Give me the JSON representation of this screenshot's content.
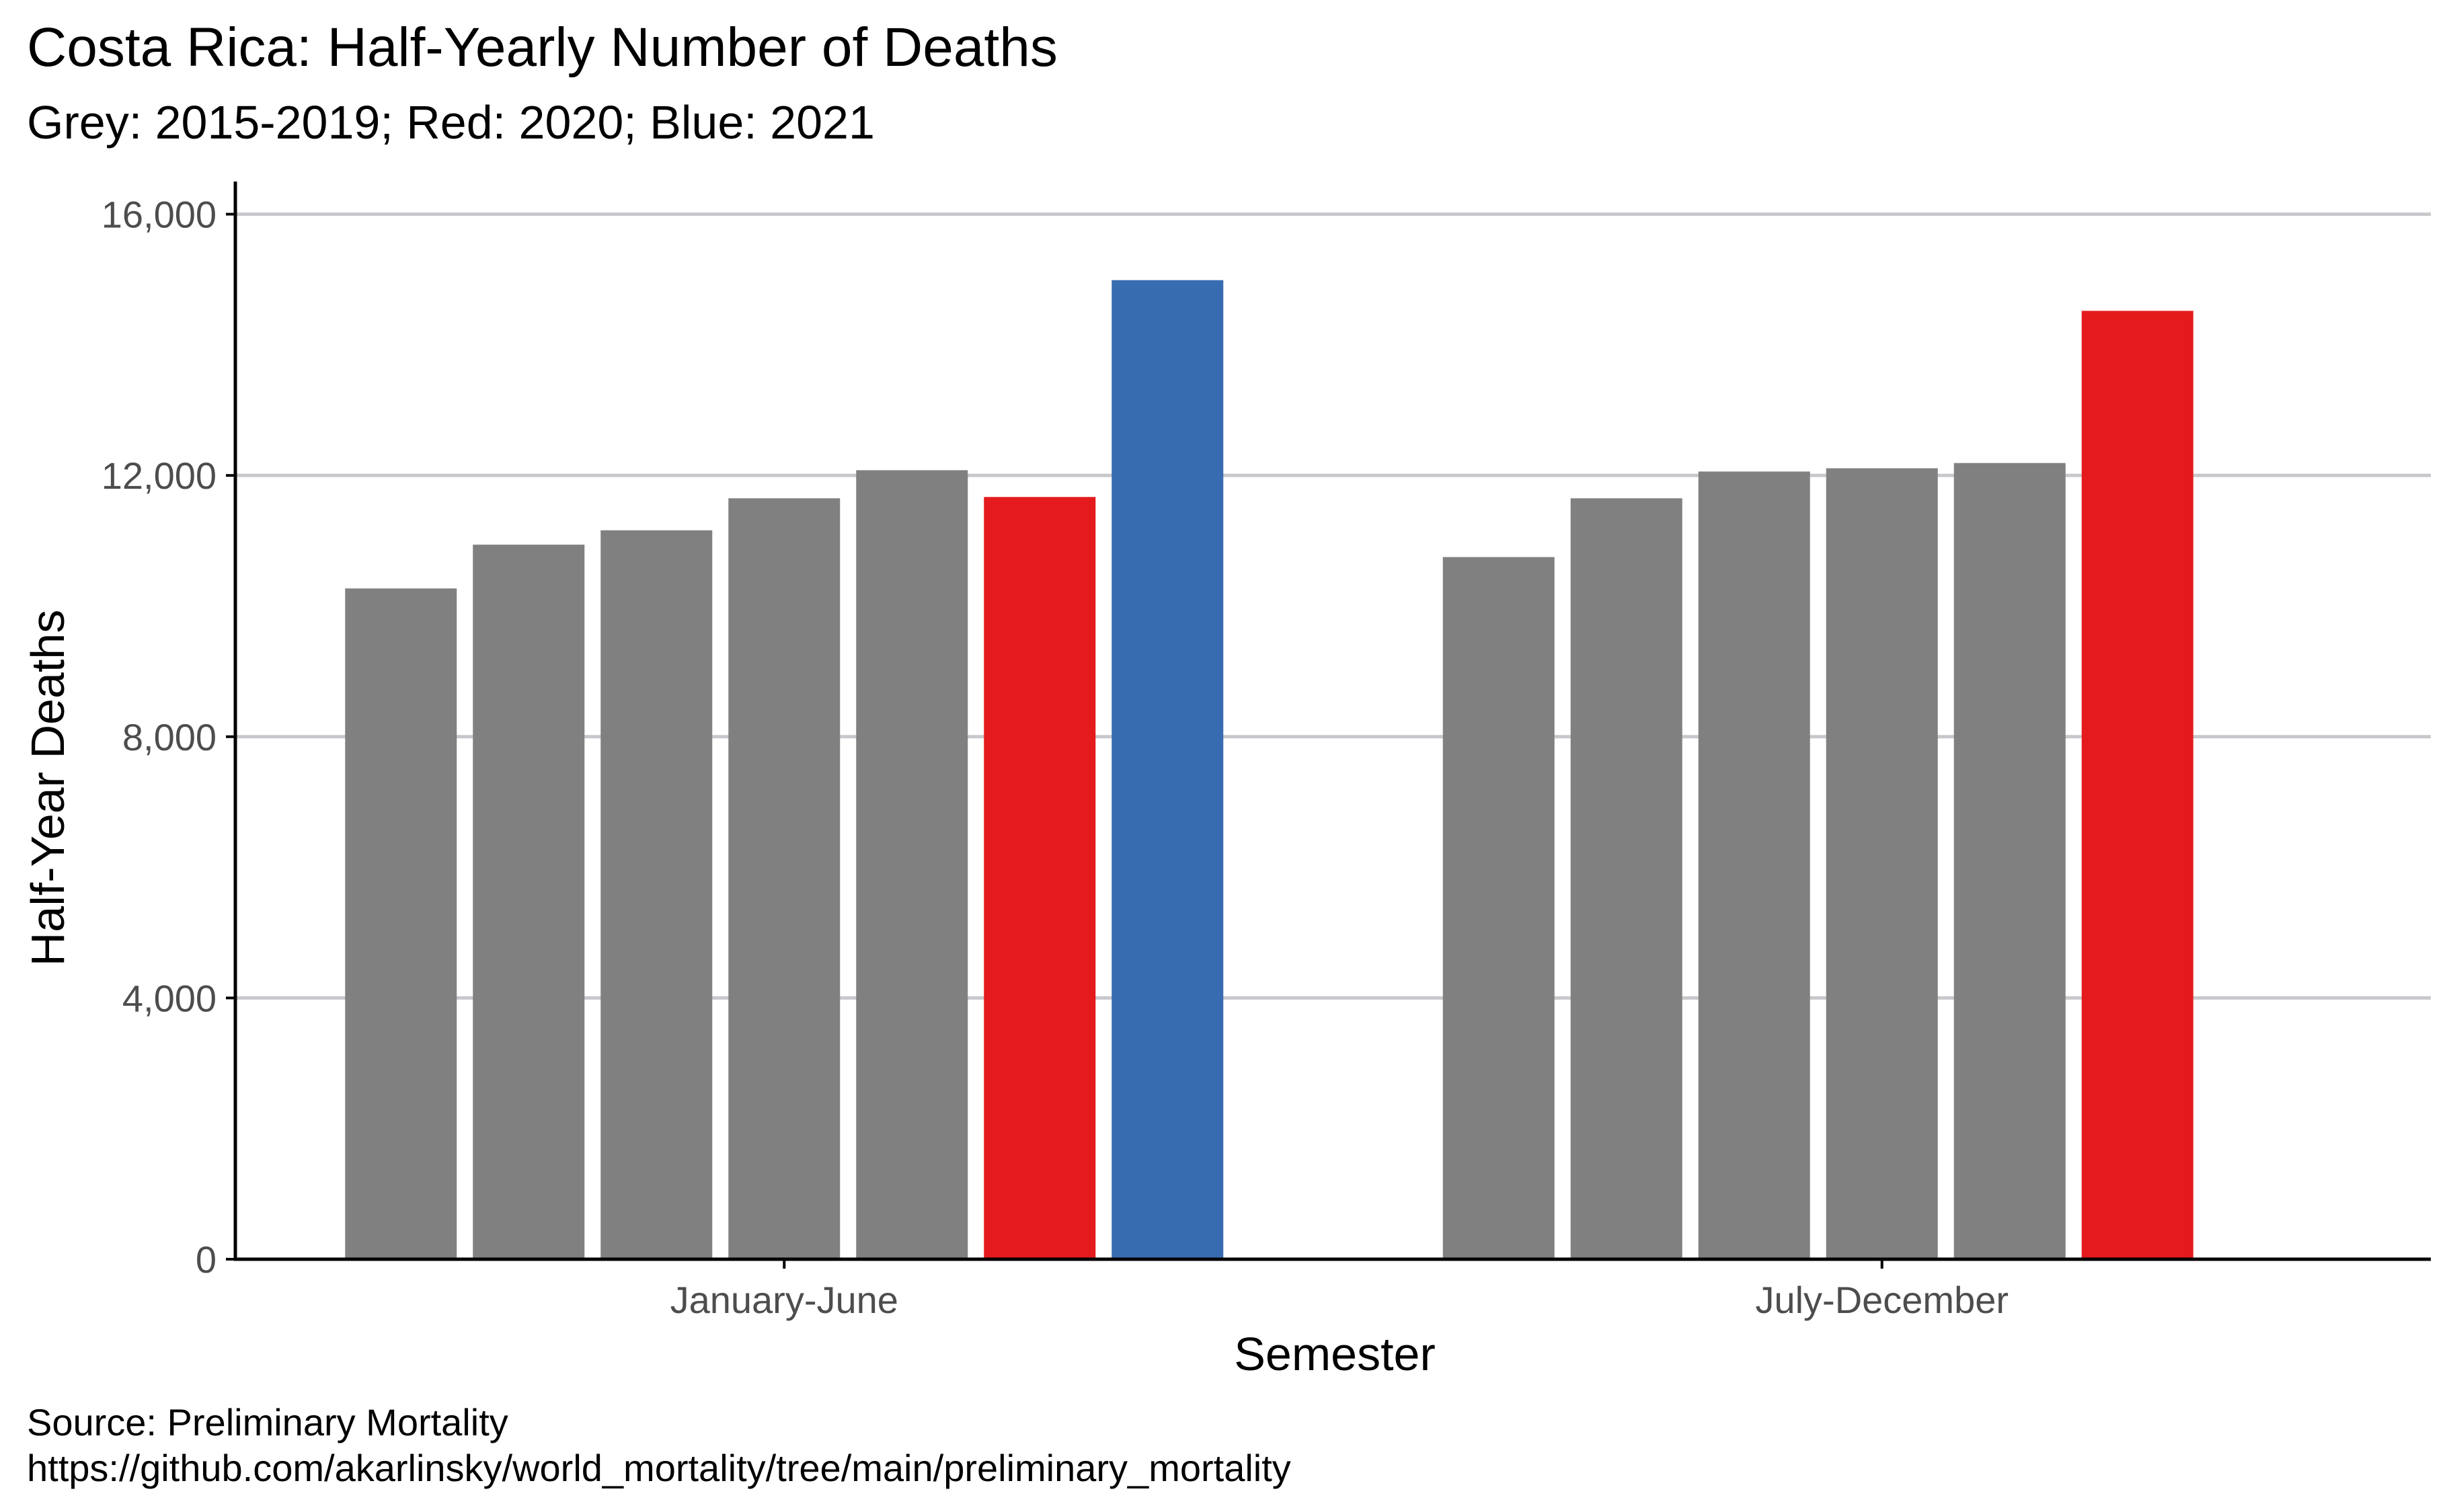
{
  "chart_data": {
    "type": "bar",
    "title": "Costa Rica: Half-Yearly Number of Deaths",
    "subtitle": "Grey: 2015-2019; Red: 2020; Blue: 2021",
    "xlabel": "Semester",
    "ylabel": "Half-Year Deaths",
    "ylim": [
      0,
      16500
    ],
    "yticks": [
      0,
      4000,
      8000,
      12000,
      16000
    ],
    "ytick_labels": [
      "0",
      "4,000",
      "8,000",
      "12,000",
      "16,000"
    ],
    "grid": "horizontal",
    "legend": "none",
    "categories": [
      "January-June",
      "July-December"
    ],
    "series": [
      {
        "color": "#808080",
        "values": [
          10270,
          10750
        ]
      },
      {
        "color": "#808080",
        "values": [
          10940,
          11650
        ]
      },
      {
        "color": "#808080",
        "values": [
          11160,
          12060
        ]
      },
      {
        "color": "#808080",
        "values": [
          11650,
          12110
        ]
      },
      {
        "color": "#808080",
        "values": [
          12080,
          12190
        ]
      },
      {
        "color": "#e41a1c",
        "values": [
          11670,
          14520
        ]
      },
      {
        "color": "#386cb0",
        "values": [
          14990,
          null
        ]
      }
    ],
    "caption_line1": "Source: Preliminary Mortality",
    "caption_line2": "https://github.com/akarlinsky/world_mortality/tree/main/preliminary_mortality"
  },
  "colors": {
    "grey": "#808080",
    "red": "#e41a1c",
    "blue": "#386cb0",
    "grid": "#c8c8cc"
  }
}
